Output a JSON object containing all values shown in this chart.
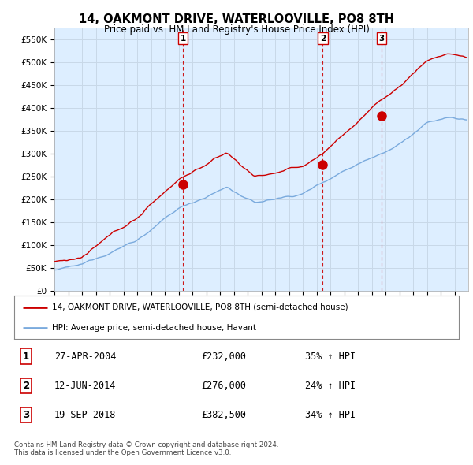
{
  "title": "14, OAKMONT DRIVE, WATERLOOVILLE, PO8 8TH",
  "subtitle": "Price paid vs. HM Land Registry's House Price Index (HPI)",
  "ylim": [
    0,
    575000
  ],
  "yticks": [
    0,
    50000,
    100000,
    150000,
    200000,
    250000,
    300000,
    350000,
    400000,
    450000,
    500000,
    550000
  ],
  "ytick_labels": [
    "£0",
    "£50K",
    "£100K",
    "£150K",
    "£200K",
    "£250K",
    "£300K",
    "£350K",
    "£400K",
    "£450K",
    "£500K",
    "£550K"
  ],
  "sale_dates_num": [
    2004.32,
    2014.45,
    2018.72
  ],
  "sale_prices": [
    232000,
    276000,
    382500
  ],
  "sale_labels": [
    "1",
    "2",
    "3"
  ],
  "sale_color": "#cc0000",
  "hpi_color": "#7aaadd",
  "hpi_fill_color": "#ddeeff",
  "legend_label_red": "14, OAKMONT DRIVE, WATERLOOVILLE, PO8 8TH (semi-detached house)",
  "legend_label_blue": "HPI: Average price, semi-detached house, Havant",
  "table_rows": [
    [
      "1",
      "27-APR-2004",
      "£232,000",
      "35% ↑ HPI"
    ],
    [
      "2",
      "12-JUN-2014",
      "£276,000",
      "24% ↑ HPI"
    ],
    [
      "3",
      "19-SEP-2018",
      "£382,500",
      "34% ↑ HPI"
    ]
  ],
  "footer_text": "Contains HM Land Registry data © Crown copyright and database right 2024.\nThis data is licensed under the Open Government Licence v3.0.",
  "background_color": "#ffffff",
  "grid_color": "#c8d8e8",
  "vline_color": "#cc0000"
}
